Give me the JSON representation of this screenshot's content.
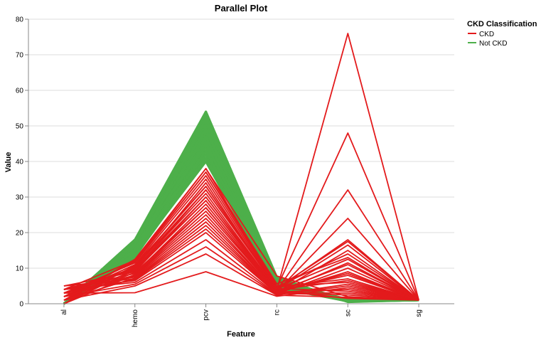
{
  "chart_data": {
    "type": "line",
    "chart_subtype": "parallel-coordinates",
    "title": "Parallel Plot",
    "xlabel": "Feature",
    "ylabel": "Value",
    "categories": [
      "al",
      "hemo",
      "pcv",
      "rc",
      "sc",
      "sg"
    ],
    "ylim": [
      0,
      80
    ],
    "yticks": [
      0,
      10,
      20,
      30,
      40,
      50,
      60,
      70,
      80
    ],
    "grid": true,
    "legend": {
      "title": "CKD Classification",
      "position": "top-right",
      "entries": [
        {
          "label": "CKD",
          "color": "#e31a1c"
        },
        {
          "label": "Not CKD",
          "color": "#4daf4a"
        }
      ]
    },
    "series": [
      {
        "name": "Not CKD",
        "color": "#4daf4a",
        "lines": [
          [
            0,
            18.0,
            54,
            7.5,
            0.5,
            1.02
          ],
          [
            0,
            17.5,
            53,
            7.0,
            0.6,
            1.02
          ],
          [
            0,
            17.0,
            52,
            6.8,
            0.7,
            1.02
          ],
          [
            0,
            16.5,
            51,
            6.6,
            0.8,
            1.02
          ],
          [
            0,
            16.0,
            50,
            6.4,
            0.9,
            1.02
          ],
          [
            0,
            15.5,
            49,
            6.2,
            1.0,
            1.02
          ],
          [
            0,
            15.0,
            48,
            6.0,
            1.1,
            1.02
          ],
          [
            0,
            14.5,
            47,
            5.8,
            1.2,
            1.02
          ],
          [
            0,
            14.0,
            46,
            5.6,
            0.8,
            1.02
          ],
          [
            0,
            13.5,
            45,
            5.4,
            0.9,
            1.02
          ],
          [
            0,
            13.0,
            44,
            5.2,
            1.0,
            1.02
          ],
          [
            0,
            13.0,
            43,
            5.0,
            1.1,
            1.02
          ],
          [
            0,
            14.0,
            42,
            4.8,
            1.2,
            1.02
          ],
          [
            0,
            15.0,
            41,
            4.6,
            0.7,
            1.02
          ],
          [
            0,
            16.0,
            40,
            4.5,
            0.8,
            1.02
          ],
          [
            0,
            17.0,
            42,
            4.7,
            0.9,
            1.02
          ],
          [
            0,
            18.0,
            44,
            5.0,
            1.0,
            1.02
          ],
          [
            0,
            13.5,
            50,
            5.9,
            1.1,
            1.02
          ],
          [
            0,
            14.5,
            53,
            6.3,
            1.2,
            1.02
          ],
          [
            0,
            15.5,
            46,
            5.5,
            0.6,
            1.02
          ],
          [
            0,
            16.5,
            48,
            6.1,
            0.7,
            1.02
          ],
          [
            0,
            17.5,
            47,
            5.7,
            0.8,
            1.02
          ],
          [
            0,
            13.2,
            41,
            4.9,
            0.9,
            1.02
          ],
          [
            0,
            14.8,
            43,
            5.1,
            1.0,
            1.02
          ],
          [
            0,
            16.2,
            45,
            5.3,
            1.1,
            1.02
          ],
          [
            0,
            17.8,
            49,
            6.5,
            1.2,
            1.02
          ],
          [
            0,
            15.2,
            51,
            6.7,
            0.9,
            1.02
          ],
          [
            0,
            14.2,
            52,
            6.9,
            0.8,
            1.02
          ],
          [
            0,
            16.8,
            54,
            7.2,
            0.7,
            1.02
          ],
          [
            0,
            13.8,
            40,
            4.6,
            1.0,
            1.02
          ]
        ]
      },
      {
        "name": "CKD",
        "color": "#e31a1c",
        "lines": [
          [
            5,
            9.0,
            30,
            4.0,
            76.0,
            1.01
          ],
          [
            4,
            9.5,
            32,
            4.5,
            48.0,
            1.01
          ],
          [
            3,
            10.0,
            34,
            3.8,
            32.0,
            1.01
          ],
          [
            4,
            8.5,
            28,
            3.5,
            24.0,
            1.01
          ],
          [
            2,
            11.0,
            35,
            4.2,
            18.0,
            1.015
          ],
          [
            3,
            9.8,
            31,
            3.9,
            16.5,
            1.01
          ],
          [
            4,
            7.5,
            24,
            3.2,
            15.0,
            1.01
          ],
          [
            2,
            12.0,
            37,
            4.8,
            14.0,
            1.015
          ],
          [
            1,
            10.5,
            33,
            4.1,
            12.5,
            1.02
          ],
          [
            3,
            8.0,
            26,
            3.4,
            11.0,
            1.01
          ],
          [
            4,
            6.5,
            20,
            2.8,
            10.0,
            1.01
          ],
          [
            5,
            7.0,
            22,
            3.0,
            9.0,
            1.01
          ],
          [
            2,
            9.2,
            29,
            3.6,
            8.0,
            1.015
          ],
          [
            3,
            11.5,
            36,
            4.6,
            7.0,
            1.01
          ],
          [
            1,
            12.5,
            38,
            5.0,
            6.0,
            1.02
          ],
          [
            4,
            6.0,
            18,
            2.6,
            5.5,
            1.01
          ],
          [
            2,
            5.5,
            16,
            2.5,
            5.0,
            1.015
          ],
          [
            3,
            3.1,
            9,
            2.1,
            4.5,
            1.01
          ],
          [
            1,
            8.8,
            27,
            3.3,
            4.0,
            1.02
          ],
          [
            0,
            10.8,
            33,
            4.3,
            3.5,
            1.015
          ],
          [
            2,
            7.8,
            25,
            3.1,
            3.0,
            1.01
          ],
          [
            3,
            6.8,
            21,
            2.9,
            2.5,
            1.01
          ],
          [
            4,
            12.2,
            38,
            7.8,
            2.0,
            1.01
          ],
          [
            1,
            5.0,
            14,
            2.4,
            1.8,
            1.02
          ],
          [
            0,
            9.6,
            30,
            3.7,
            1.5,
            1.015
          ],
          [
            2,
            11.8,
            37,
            5.6,
            13.0,
            1.01
          ],
          [
            3,
            10.2,
            32,
            4.4,
            17.5,
            1.01
          ],
          [
            1,
            7.2,
            23,
            3.0,
            11.5,
            1.015
          ],
          [
            0,
            8.2,
            27,
            3.4,
            8.5,
            1.02
          ],
          [
            4,
            9.4,
            29,
            3.9,
            6.5,
            1.01
          ]
        ]
      }
    ]
  }
}
